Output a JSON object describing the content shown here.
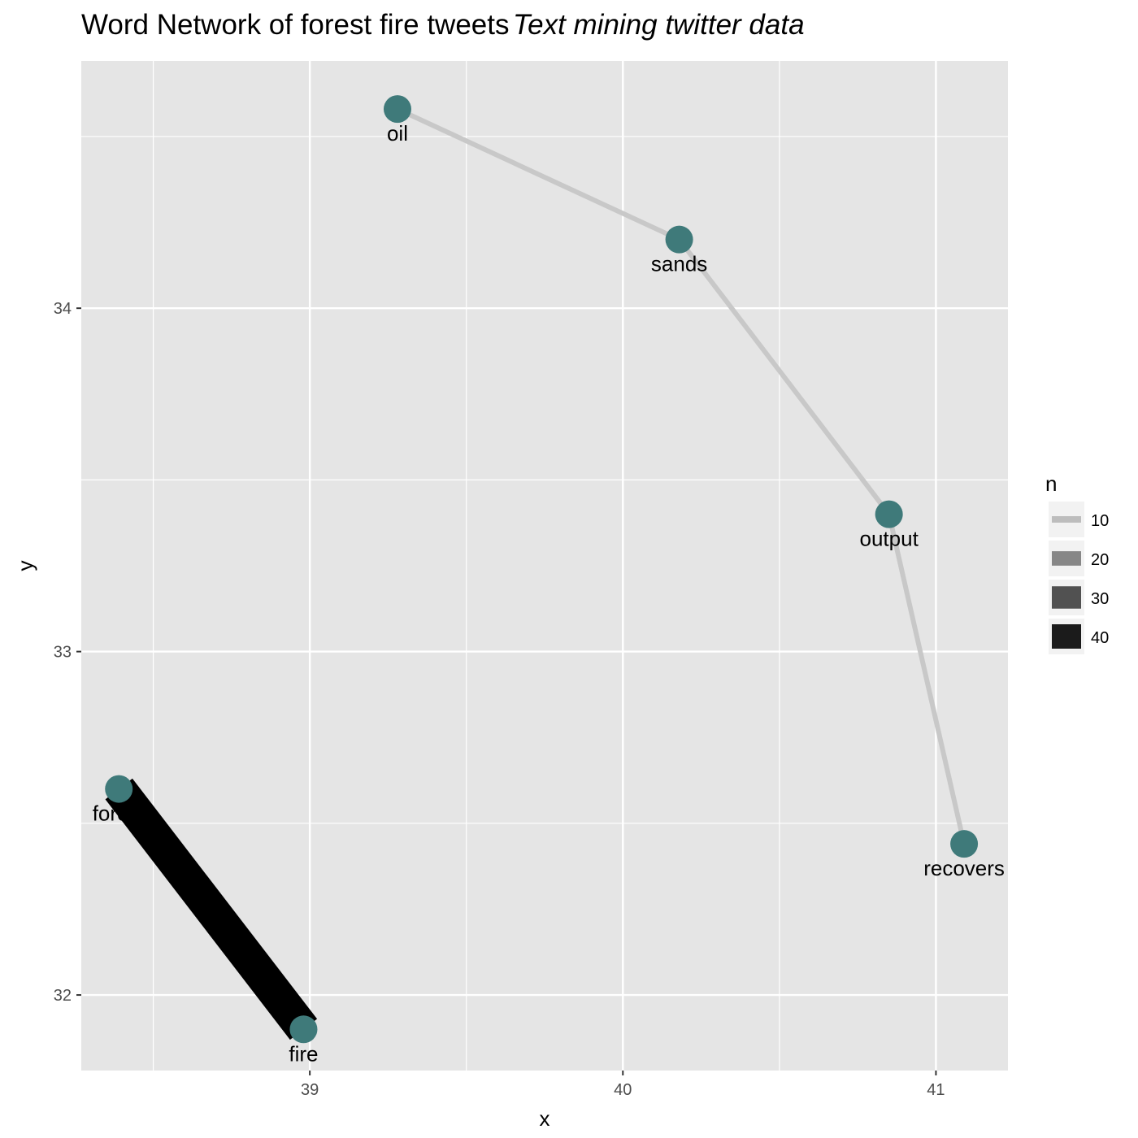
{
  "chart_data": {
    "type": "network",
    "title": "Word Network of forest fire tweets",
    "subtitle": "Text mining twitter data",
    "xlabel": "x",
    "ylabel": "y",
    "xlim": [
      38.27,
      41.23
    ],
    "ylim": [
      31.78,
      34.72
    ],
    "x_ticks": [
      "39",
      "40",
      "41"
    ],
    "y_ticks": [
      "32",
      "33",
      "34"
    ],
    "x_tick_values": [
      39,
      40,
      41
    ],
    "y_tick_values": [
      32,
      33,
      34
    ],
    "grid": true,
    "panel_background": "#e5e5e5",
    "grid_color": "#ffffff",
    "node_color": "#3f7a7a",
    "nodes": [
      {
        "name": "oil",
        "label": "oil",
        "x": 39.28,
        "y": 34.58
      },
      {
        "name": "sands",
        "label": "sands",
        "x": 40.18,
        "y": 34.2
      },
      {
        "name": "output",
        "label": "output",
        "x": 40.85,
        "y": 33.4
      },
      {
        "name": "recovers",
        "label": "recovers",
        "x": 41.09,
        "y": 32.44
      },
      {
        "name": "forest",
        "label": "forest",
        "x": 38.39,
        "y": 32.6
      },
      {
        "name": "fire",
        "label": "fire",
        "x": 38.98,
        "y": 31.9
      }
    ],
    "edges": [
      {
        "from": "forest",
        "to": "fire",
        "n": 45
      },
      {
        "from": "oil",
        "to": "sands",
        "n": 8
      },
      {
        "from": "sands",
        "to": "output",
        "n": 8
      },
      {
        "from": "output",
        "to": "recovers",
        "n": 8
      }
    ],
    "legend": {
      "title": "n",
      "position": "right",
      "entries": [
        {
          "label": "10",
          "n": 10
        },
        {
          "label": "20",
          "n": 20
        },
        {
          "label": "30",
          "n": 30
        },
        {
          "label": "40",
          "n": 40
        }
      ]
    }
  }
}
